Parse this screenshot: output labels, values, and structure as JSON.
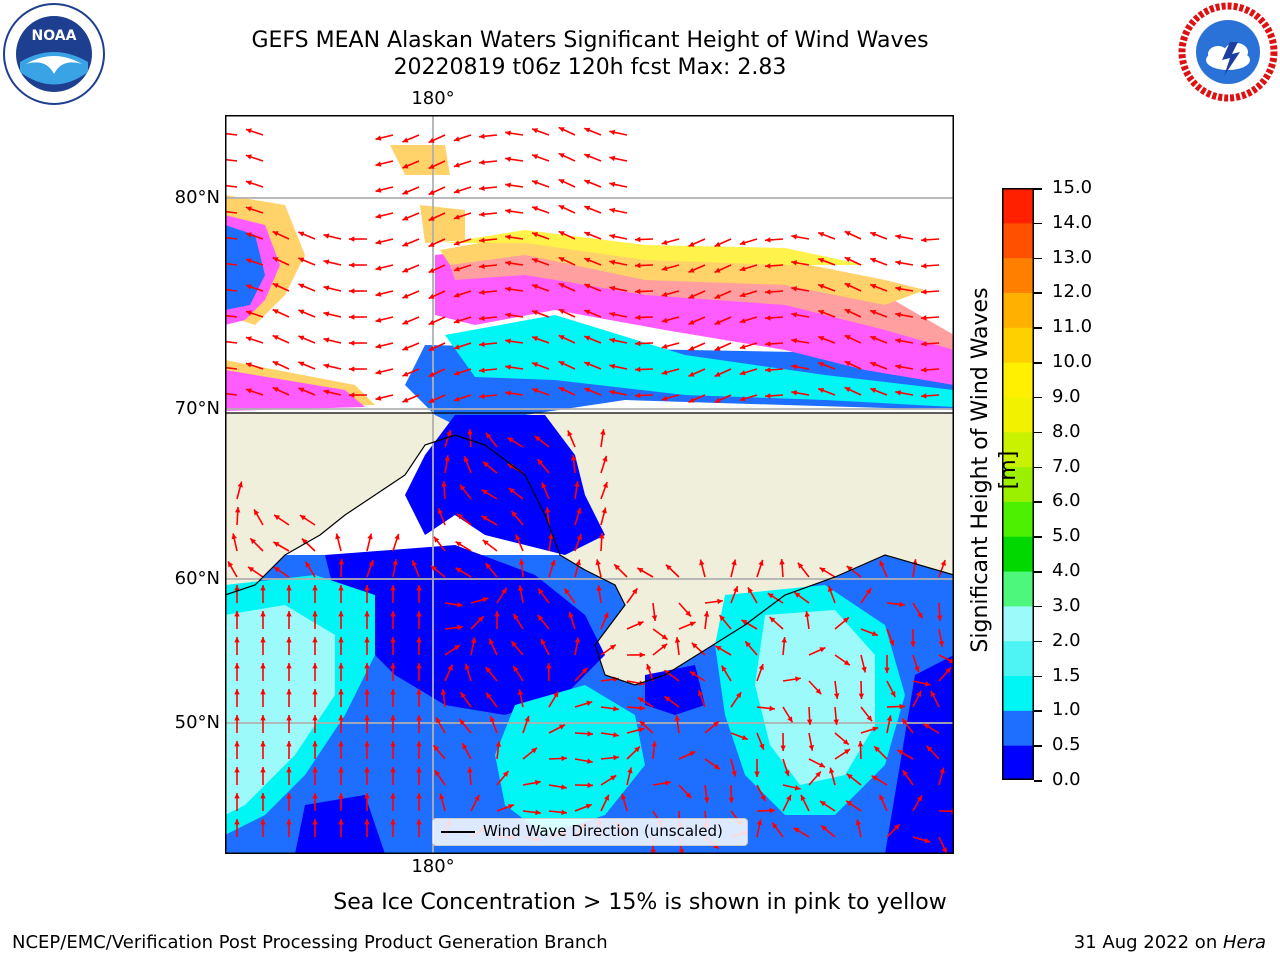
{
  "title": {
    "line1": "GEFS MEAN Alaskan Waters Significant Height of Wind Waves",
    "line2": "20220819 t06z 120h fcst   Max: 2.83"
  },
  "logos": {
    "left": {
      "name": "NOAA",
      "icon": "noaa-logo",
      "text": "NOAA"
    },
    "right": {
      "name": "National Weather Service",
      "icon": "nws-logo"
    }
  },
  "map": {
    "lon_label_top": "180°",
    "lon_label_bottom": "180°",
    "lat_labels": [
      "80°N",
      "70°N",
      "60°N",
      "50°N"
    ],
    "land_color": "#efefdc",
    "ocean_colors": {
      "deep": "#0000ff",
      "mid": "#1e6fff",
      "light": "#00f5f5",
      "pale": "#9dfafa"
    },
    "ice_colors": [
      "#ff5cff",
      "#ff9fa0",
      "#ffd36a",
      "#fff24a"
    ],
    "arrow_color": "#ff0000"
  },
  "legend": {
    "label": "Wind Wave Direction (unscaled)"
  },
  "colorbar": {
    "label": "Significant Height of Wind Waves [m]",
    "ticks": [
      "0.0",
      "0.5",
      "1.0",
      "1.5",
      "2.0",
      "3.0",
      "4.0",
      "5.0",
      "6.0",
      "7.0",
      "8.0",
      "9.0",
      "10.0",
      "11.0",
      "12.0",
      "13.0",
      "14.0",
      "15.0"
    ],
    "colors": [
      "#0000ff",
      "#1e6fff",
      "#00f5f5",
      "#4ef4f4",
      "#9dfafa",
      "#4cf77c",
      "#00d800",
      "#4cf000",
      "#9bf000",
      "#c9f200",
      "#f2f200",
      "#ffef00",
      "#ffd000",
      "#ffb000",
      "#ff8000",
      "#ff5000",
      "#ff2000"
    ]
  },
  "caption": "Sea Ice Concentration > 15% is shown in pink to yellow",
  "footer": {
    "left": "NCEP/EMC/Verification Post Processing Product Generation Branch",
    "date": "31 Aug 2022 on ",
    "machine": "Hera"
  }
}
